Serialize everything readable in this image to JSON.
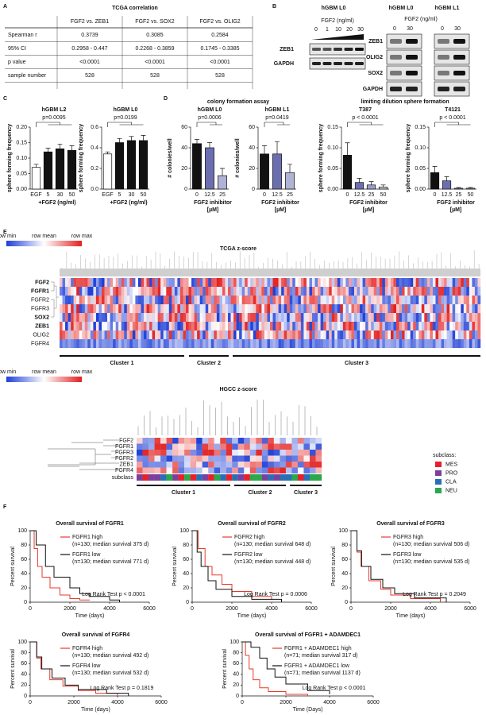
{
  "A": {
    "letter": "A",
    "title": "TCGA correlation",
    "header": [
      "FGF2 vs. ZEB1",
      "FGF2 vs. SOX2",
      "FGF2 vs. OLIG2"
    ],
    "rows": [
      [
        "Spearman r",
        "0.3739",
        "0.3085",
        "0.2584"
      ],
      [
        "95% CI",
        "0.2958 - 0.447",
        "0.2268 - 0.3859",
        "0.1745 - 0.3385"
      ],
      [
        "p value",
        "<0.0001",
        "<0.0001",
        "<0.0001"
      ],
      [
        "sample number",
        "528",
        "528",
        "528"
      ]
    ]
  },
  "B": {
    "letter": "B",
    "left": {
      "title": "hGBM L0",
      "treatment": "FGF2 (ng/ml)",
      "doses": [
        "0",
        "1",
        "10",
        "20",
        "30"
      ],
      "proteins": [
        "ZEB1",
        "GAPDH"
      ]
    },
    "right": {
      "titles": [
        "hGBM L0",
        "hGBM L1"
      ],
      "treatment": "FGF2 (ng/ml)",
      "doses": [
        "0",
        "30",
        "0",
        "30"
      ],
      "proteins": [
        "ZEB1",
        "OLIG2",
        "SOX2",
        "GAPDH"
      ]
    }
  },
  "C": {
    "letter": "C",
    "charts": [
      {
        "type": "bar",
        "title": "hGBM L2",
        "ylabel": "sphere forming frequency",
        "categories": [
          "EGF",
          "5",
          "30",
          "50"
        ],
        "values": [
          0.07,
          0.12,
          0.13,
          0.125
        ],
        "errors": [
          0.01,
          0.012,
          0.015,
          0.015
        ],
        "colors": [
          "#ffffff",
          "#111111",
          "#111111",
          "#111111"
        ],
        "ylim": [
          0,
          0.2
        ],
        "yticks": [
          {
            "value": 0,
            "label": "0.00"
          },
          {
            "value": 0.05,
            "label": "0.05"
          },
          {
            "value": 0.1,
            "label": "0.10"
          },
          {
            "value": 0.15,
            "label": "0.15"
          },
          {
            "value": 0.2,
            "label": "0.20"
          }
        ],
        "xlabel": [
          "+FGF2 (ng/ml)"
        ],
        "annotation": "p=0.0095"
      },
      {
        "type": "bar",
        "title": "hGBM L0",
        "ylabel": "sphere forming frequency",
        "categories": [
          "EGF",
          "5",
          "30",
          "50"
        ],
        "values": [
          0.34,
          0.45,
          0.47,
          0.47
        ],
        "errors": [
          0.02,
          0.04,
          0.04,
          0.05
        ],
        "colors": [
          "#ffffff",
          "#111111",
          "#111111",
          "#111111"
        ],
        "ylim": [
          0,
          0.6
        ],
        "yticks": [
          {
            "value": 0,
            "label": "0.0"
          },
          {
            "value": 0.2,
            "label": "0.2"
          },
          {
            "value": 0.4,
            "label": "0.4"
          },
          {
            "value": 0.6,
            "label": "0.6"
          }
        ],
        "xlabel": [
          "+FGF2 (ng/ml)"
        ],
        "annotation": "p=0.0199"
      }
    ]
  },
  "D": {
    "letter": "D",
    "groups": [
      {
        "title": "colony formation assay",
        "charts": [
          {
            "type": "bar",
            "title": "hGBM L0",
            "ylabel": "# colonies/well",
            "categories": [
              "0",
              "12.5",
              "25"
            ],
            "values": [
              44,
              40,
              13
            ],
            "errors": [
              4,
              5,
              7
            ],
            "colors": [
              "#111111",
              "#6b6fb0",
              "#b0b3d6"
            ],
            "ylim": [
              0,
              60
            ],
            "yticks": [
              0,
              20,
              40,
              60
            ],
            "xlabel": [
              "FGF2 inhibitor",
              "[µM]"
            ],
            "annotation": "p=0.0006"
          },
          {
            "type": "bar",
            "title": "hGBM L1",
            "ylabel": "# colonies/well",
            "categories": [
              "0",
              "12.5",
              "25"
            ],
            "values": [
              34,
              34,
              16
            ],
            "errors": [
              8,
              12,
              8
            ],
            "colors": [
              "#111111",
              "#6b6fb0",
              "#b0b3d6"
            ],
            "ylim": [
              0,
              60
            ],
            "yticks": [
              0,
              20,
              40,
              60
            ],
            "xlabel": [
              "FGF2 inhibitor",
              "[µM]"
            ],
            "annotation": "p=0.0419"
          }
        ]
      },
      {
        "title": "limiting dilution sphere formation",
        "charts": [
          {
            "type": "bar",
            "title": "T387",
            "ylabel": "sphere forming frequency",
            "categories": [
              "0",
              "12.5",
              "25",
              "50"
            ],
            "values": [
              0.082,
              0.016,
              0.01,
              0.005
            ],
            "errors": [
              0.03,
              0.01,
              0.008,
              0.005
            ],
            "colors": [
              "#111111",
              "#6b6fb0",
              "#9a9dcc",
              "#c8cae4"
            ],
            "ylim": [
              0,
              0.15
            ],
            "yticks": [
              {
                "value": 0,
                "label": "0.00"
              },
              {
                "value": 0.05,
                "label": "0.05"
              },
              {
                "value": 0.1,
                "label": "0.10"
              },
              {
                "value": 0.15,
                "label": "0.15"
              }
            ],
            "xlabel": [
              "FGF2 inhibitor",
              "[µM]"
            ],
            "annotation": "p < 0.0001"
          },
          {
            "type": "bar",
            "title": "T4121",
            "ylabel": "sphere forming frequency",
            "categories": [
              "0",
              "12.5",
              "25",
              "50"
            ],
            "values": [
              0.04,
              0.02,
              0.002,
              0.002
            ],
            "errors": [
              0.015,
              0.01,
              0.002,
              0.002
            ],
            "colors": [
              "#111111",
              "#6b6fb0",
              "#9a9dcc",
              "#c8cae4"
            ],
            "ylim": [
              0,
              0.15
            ],
            "yticks": [
              {
                "value": 0,
                "label": "0.00"
              },
              {
                "value": 0.05,
                "label": "0.05"
              },
              {
                "value": 0.1,
                "label": "0.10"
              },
              {
                "value": 0.15,
                "label": "0.15"
              }
            ],
            "xlabel": [
              "FGF2 inhibitor",
              "[µM]"
            ],
            "annotation": "p < 0.0001"
          }
        ]
      }
    ]
  },
  "E": {
    "letter": "E",
    "scale": [
      "row min",
      "row mean",
      "row max"
    ],
    "tcga": {
      "title": "TCGA z-score",
      "rows": [
        "FGF2",
        "FGFR1",
        "FGFR2",
        "FGFR3",
        "SOX2",
        "ZEB1",
        "OLIG2",
        "FGFR4"
      ],
      "bold_rows": [
        true,
        true,
        false,
        false,
        true,
        true,
        false,
        false
      ],
      "clusters": [
        "Cluster 1",
        "Cluster 2",
        "Cluster 3"
      ]
    },
    "hgcc": {
      "title": "HGCC z-score",
      "rows": [
        "FGF2",
        "FGFR1",
        "FGFR3",
        "FGFR2",
        "ZEB1",
        "FGFR4"
      ],
      "subclass_row": "subclass",
      "legend_title": "subclass:",
      "subclasses": [
        {
          "name": "MES",
          "color": "#e8202a"
        },
        {
          "name": "PRO",
          "color": "#7b3f9e"
        },
        {
          "name": "CLA",
          "color": "#2a6fb5"
        },
        {
          "name": "NEU",
          "color": "#2aa84a"
        }
      ],
      "clusters": [
        "Cluster 1",
        "Cluster 2",
        "Cluster 3"
      ]
    }
  },
  "F": {
    "letter": "F",
    "charts": [
      {
        "type": "line",
        "title": "Overall survival of FGFR1",
        "xlabel": "Time (days)",
        "ylabel": "Percent survival",
        "xlim": [
          0,
          6000
        ],
        "xticks": [
          0,
          2000,
          4000,
          6000
        ],
        "ylim": [
          0,
          100
        ],
        "yticks": [
          0,
          20,
          40,
          60,
          80,
          100
        ],
        "series": [
          {
            "name": "FGFR1 high",
            "detail": "(n=130; median survival 375 d)",
            "color": "#e8392b",
            "x": [
              0,
              200,
              375,
              600,
              1000,
              1500,
              2000,
              2500,
              3000
            ],
            "values": [
              100,
              75,
              50,
              35,
              20,
              10,
              5,
              3,
              3
            ]
          },
          {
            "name": "FGFR1 low",
            "detail": "(n=130; median survival 771 d)",
            "color": "#111111",
            "x": [
              0,
              300,
              771,
              1200,
              2000,
              2500,
              3000,
              4000,
              4500
            ],
            "values": [
              100,
              80,
              50,
              35,
              20,
              12,
              8,
              3,
              0
            ]
          }
        ],
        "annotation": "Log Rank Test p < 0.0001"
      },
      {
        "type": "line",
        "title": "Overall survival of FGFR2",
        "xlabel": "Time (days)",
        "ylabel": "Percent survival",
        "xlim": [
          0,
          6000
        ],
        "xticks": [
          0,
          2000,
          4000,
          6000
        ],
        "ylim": [
          0,
          100
        ],
        "yticks": [
          0,
          20,
          40,
          60,
          80,
          100
        ],
        "series": [
          {
            "name": "FGFR2 high",
            "detail": "(n=130; median survival 648 d)",
            "color": "#e8392b",
            "x": [
              0,
              300,
              648,
              1000,
              1500,
              2000,
              3000,
              4000
            ],
            "values": [
              100,
              75,
              50,
              38,
              25,
              15,
              8,
              3
            ]
          },
          {
            "name": "FGFR2 low",
            "detail": "(n=130; median survival 448 d)",
            "color": "#111111",
            "x": [
              0,
              250,
              448,
              800,
              1200,
              2000,
              3000,
              4500
            ],
            "values": [
              100,
              70,
              50,
              30,
              18,
              8,
              4,
              0
            ]
          }
        ],
        "annotation": "Log Rank Test p = 0.0006"
      },
      {
        "type": "line",
        "title": "Overall survival of FGFR3",
        "xlabel": "Time (days)",
        "ylabel": "Percent survival",
        "xlim": [
          0,
          6000
        ],
        "xticks": [
          0,
          2000,
          4000,
          6000
        ],
        "ylim": [
          0,
          100
        ],
        "yticks": [
          0,
          20,
          40,
          60,
          80,
          100
        ],
        "series": [
          {
            "name": "FGFR3 high",
            "detail": "(n=130; median survival 506 d)",
            "color": "#e8392b",
            "x": [
              0,
              300,
              506,
              900,
              1500,
              2000,
              3000,
              4500
            ],
            "values": [
              100,
              70,
              50,
              30,
              18,
              10,
              5,
              0
            ]
          },
          {
            "name": "FGFR3 low",
            "detail": "(n=130; median survival 535 d)",
            "color": "#111111",
            "x": [
              0,
              300,
              535,
              1000,
              1600,
              2200,
              3200,
              4800
            ],
            "values": [
              100,
              72,
              50,
              32,
              20,
              12,
              6,
              0
            ]
          }
        ],
        "annotation": "Log Rank Test p = 0.2049"
      },
      {
        "type": "line",
        "title": "Overall survival of FGFR4",
        "xlabel": "Time (days)",
        "ylabel": "Percent survival",
        "xlim": [
          0,
          6000
        ],
        "xticks": [
          0,
          2000,
          4000,
          6000
        ],
        "ylim": [
          0,
          100
        ],
        "yticks": [
          0,
          20,
          40,
          60,
          80,
          100
        ],
        "series": [
          {
            "name": "FGFR4 high",
            "detail": "(n=130; median survival 492 d)",
            "color": "#e8392b",
            "x": [
              0,
              300,
              492,
              900,
              1500,
              2200,
              3000,
              4000
            ],
            "values": [
              100,
              70,
              50,
              30,
              18,
              10,
              5,
              0
            ]
          },
          {
            "name": "FGFR4 low",
            "detail": "(n=130; median survival 532 d)",
            "color": "#111111",
            "x": [
              0,
              300,
              532,
              1000,
              1600,
              2200,
              3500,
              4500
            ],
            "values": [
              100,
              72,
              50,
              33,
              20,
              12,
              5,
              0
            ]
          }
        ],
        "annotation": "Log Rank Test p = 0.1819"
      },
      {
        "type": "line",
        "title": "Overall survival of FGFR1 + ADAMDEC1",
        "xlabel": "Time (Days)",
        "ylabel": "Percent survival",
        "xlim": [
          0,
          6000
        ],
        "xticks": [
          0,
          2000,
          4000,
          6000
        ],
        "ylim": [
          0,
          100
        ],
        "yticks": [
          0,
          20,
          40,
          60,
          80,
          100
        ],
        "series": [
          {
            "name": "FGFR1 + ADAMDEC1 high",
            "detail": "(n=71; median survival 317 d)",
            "color": "#e8392b",
            "x": [
              0,
              150,
              317,
              500,
              800,
              1200,
              2000,
              3000
            ],
            "values": [
              100,
              75,
              50,
              30,
              15,
              8,
              3,
              0
            ]
          },
          {
            "name": "FGFR1 + ADAMDEC1 low",
            "detail": "(n=71; median survival 1137 d)",
            "color": "#111111",
            "x": [
              0,
              400,
              800,
              1137,
              1500,
              2000,
              3000,
              4000
            ],
            "values": [
              100,
              90,
              70,
              50,
              35,
              22,
              10,
              3
            ]
          }
        ],
        "annotation": "Log Rank Test p < 0.0001"
      }
    ]
  }
}
